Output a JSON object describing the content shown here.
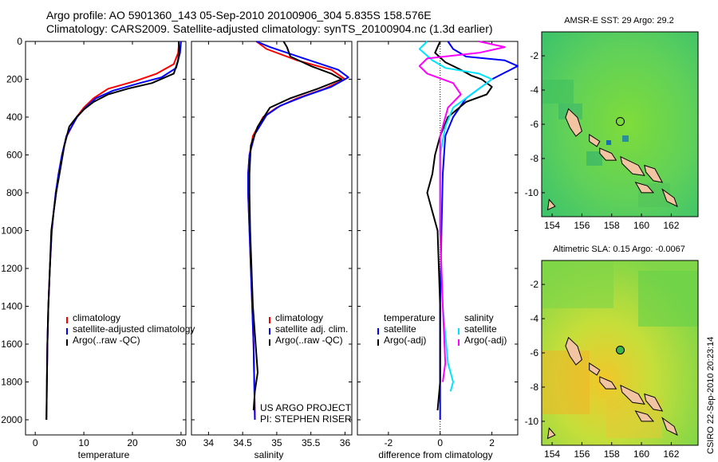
{
  "header": {
    "line1": "Argo profile: AO 5901360_143 05-Sep-2010 20100906_304 5.835S 158.576E",
    "line2": "Climatology: CARS2009. Satellite-adjusted climatology: synTS_20100904.nc (1.3d earlier)"
  },
  "side_label": "CSIRO 22-Sep-2010 20:23:14",
  "colors": {
    "climatology": "#ff0000",
    "satellite": "#0000ff",
    "argo": "#000000",
    "sat_salinity": "#00e5ff",
    "argo_salinity": "#ff00ff"
  },
  "chart_data": [
    {
      "type": "line",
      "xlabel": "temperature",
      "ylabel": "",
      "xlim": [
        -2,
        31
      ],
      "ylim": [
        2080,
        0
      ],
      "x_ticks": [
        "0",
        "10",
        "20",
        "30"
      ],
      "y_ticks": [
        "0",
        "200",
        "400",
        "600",
        "800",
        "1000",
        "1200",
        "1400",
        "1600",
        "1800",
        "2000"
      ],
      "legend": [
        "climatology",
        "satellite-adjusted climatology",
        "Argo(..raw -QC)"
      ],
      "series": [
        {
          "name": "climatology",
          "x": [
            29.6,
            29.4,
            28.5,
            25.0,
            20.5,
            15.0,
            12.0,
            10.0,
            8.5,
            7.5,
            6.5,
            5.5,
            4.8,
            4.3,
            3.8,
            3.4,
            3.0,
            2.7,
            2.5,
            2.4
          ],
          "y": [
            0,
            60,
            120,
            170,
            210,
            250,
            300,
            350,
            400,
            450,
            500,
            600,
            700,
            800,
            900,
            1000,
            1200,
            1400,
            1600,
            1800
          ]
        },
        {
          "name": "satellite-adjusted climatology",
          "x": [
            30.0,
            29.8,
            29.0,
            26.0,
            21.5,
            16.0,
            12.5,
            10.3,
            8.6,
            7.5,
            6.4,
            5.5,
            4.8,
            4.2,
            3.8,
            3.4,
            3.0,
            2.7,
            2.5,
            2.4,
            2.3
          ],
          "y": [
            0,
            60,
            140,
            190,
            220,
            260,
            300,
            350,
            400,
            450,
            500,
            600,
            700,
            800,
            900,
            1000,
            1200,
            1400,
            1600,
            1800,
            2000
          ]
        },
        {
          "name": "Argo(..raw -QC)",
          "x": [
            29.5,
            29.6,
            29.4,
            28.5,
            24.0,
            19.0,
            15.0,
            12.0,
            10.0,
            8.5,
            7.0,
            6.0,
            5.0,
            4.3,
            3.8,
            3.3,
            3.0,
            2.7,
            2.5,
            2.4,
            2.3
          ],
          "y": [
            0,
            30,
            100,
            170,
            220,
            250,
            280,
            320,
            360,
            400,
            450,
            550,
            700,
            800,
            900,
            1000,
            1200,
            1400,
            1600,
            1800,
            2000
          ]
        }
      ]
    },
    {
      "type": "line",
      "xlabel": "salinity",
      "xlim": [
        33.75,
        36.1
      ],
      "ylim": [
        2080,
        0
      ],
      "x_ticks": [
        "34",
        "34.5",
        "35",
        "35.5",
        "36"
      ],
      "legend": [
        "climatology",
        "satellite adj. clim.",
        "Argo(..raw -QC)"
      ],
      "series": [
        {
          "name": "climatology",
          "x": [
            34.7,
            34.85,
            35.3,
            35.8,
            36.0,
            35.7,
            35.3,
            35.0,
            34.8,
            34.65,
            34.6,
            34.58,
            34.58,
            34.6,
            34.62,
            34.64,
            34.66,
            34.67,
            34.68
          ],
          "y": [
            0,
            40,
            100,
            150,
            200,
            250,
            300,
            350,
            400,
            500,
            600,
            700,
            800,
            1000,
            1200,
            1400,
            1600,
            1800,
            2000
          ]
        },
        {
          "name": "satellite adj. clim.",
          "x": [
            34.7,
            34.9,
            35.4,
            35.9,
            36.05,
            35.8,
            35.4,
            35.05,
            34.85,
            34.68,
            34.6,
            34.58,
            34.58,
            34.6,
            34.62,
            34.64,
            34.66,
            34.67,
            34.68
          ],
          "y": [
            0,
            30,
            90,
            150,
            190,
            240,
            290,
            340,
            390,
            490,
            600,
            700,
            800,
            1000,
            1200,
            1400,
            1600,
            1800,
            2000
          ]
        },
        {
          "name": "Argo(..raw -QC)",
          "x": [
            35.1,
            35.15,
            35.2,
            35.5,
            35.8,
            35.95,
            35.6,
            35.2,
            34.9,
            34.72,
            34.62,
            34.6,
            34.6,
            34.61,
            34.63,
            34.65,
            34.7,
            34.72,
            34.68,
            34.66
          ],
          "y": [
            0,
            30,
            80,
            130,
            170,
            200,
            250,
            300,
            350,
            450,
            550,
            700,
            800,
            1000,
            1200,
            1400,
            1650,
            1750,
            1850,
            1950
          ]
        }
      ]
    },
    {
      "type": "line",
      "xlabel": "difference from climatology",
      "xlim": [
        -3.2,
        3.0
      ],
      "ylim": [
        2080,
        0
      ],
      "x_ticks": [
        "-2",
        "0",
        "2"
      ],
      "legend_headers": [
        "temperature",
        "salinity"
      ],
      "legend": [
        "satellite",
        "Argo(-adj)",
        "satellite",
        "Argo(-adj)"
      ],
      "series": [
        {
          "name": "temperature satellite",
          "x": [
            0.3,
            0.5,
            1.0,
            2.5,
            3.0,
            2.0,
            1.0,
            0.5,
            0.2,
            0.1,
            0.05,
            0.0,
            0.0,
            0.0
          ],
          "y": [
            0,
            40,
            80,
            100,
            130,
            200,
            300,
            400,
            500,
            700,
            1000,
            1400,
            1800,
            2000
          ]
        },
        {
          "name": "temperature Argo(-adj)",
          "x": [
            0.0,
            -0.2,
            0.2,
            0.8,
            1.2,
            1.6,
            2.0,
            1.8,
            1.0,
            0.3,
            0.0,
            -0.2,
            -0.3,
            -0.5,
            -0.3,
            -0.1,
            0.0,
            0.0,
            -0.1
          ],
          "y": [
            0,
            60,
            110,
            150,
            180,
            200,
            240,
            280,
            320,
            400,
            500,
            600,
            700,
            800,
            900,
            1000,
            1400,
            1800,
            1950
          ]
        },
        {
          "name": "salinity satellite",
          "x": [
            -0.5,
            -0.8,
            -0.3,
            0.2,
            1.5,
            2.0,
            1.5,
            0.5,
            0.2,
            0.0,
            0.0,
            0.1,
            0.3,
            0.5,
            0.4
          ],
          "y": [
            0,
            40,
            100,
            140,
            170,
            200,
            250,
            350,
            450,
            600,
            1000,
            1400,
            1700,
            1800,
            1850
          ]
        },
        {
          "name": "salinity Argo(-adj)",
          "x": [
            1.5,
            2.5,
            1.5,
            -0.5,
            -0.8,
            -0.5,
            0.5,
            0.8,
            0.3,
            0.0,
            0.0,
            0.1,
            0.2,
            0.1
          ],
          "y": [
            0,
            30,
            60,
            90,
            130,
            170,
            220,
            280,
            350,
            500,
            1000,
            1400,
            1700,
            1800
          ]
        }
      ]
    },
    {
      "type": "heatmap",
      "title": "AMSR-E SST: 29  Argo: 29.2",
      "x_ticks": [
        "154",
        "156",
        "158",
        "160",
        "162"
      ],
      "y_ticks": [
        "-2",
        "-4",
        "-6",
        "-8",
        "-10"
      ],
      "xlim": [
        153.3,
        163.8
      ],
      "ylim": [
        -11.4,
        -0.6
      ],
      "argo_position": {
        "lon": 158.576,
        "lat": -5.835
      }
    },
    {
      "type": "heatmap",
      "title": "Altimetric SLA: 0.15  Argo: -0.0067",
      "x_ticks": [
        "154",
        "156",
        "158",
        "160",
        "162"
      ],
      "y_ticks": [
        "-2",
        "-4",
        "-6",
        "-8",
        "-10"
      ],
      "xlim": [
        153.3,
        163.8
      ],
      "ylim": [
        -11.4,
        -0.6
      ],
      "argo_position": {
        "lon": 158.576,
        "lat": -5.835
      }
    },
    {
      "type": "text",
      "lines": [
        "US ARGO PROJECT",
        "PI: STEPHEN RISER"
      ]
    }
  ]
}
